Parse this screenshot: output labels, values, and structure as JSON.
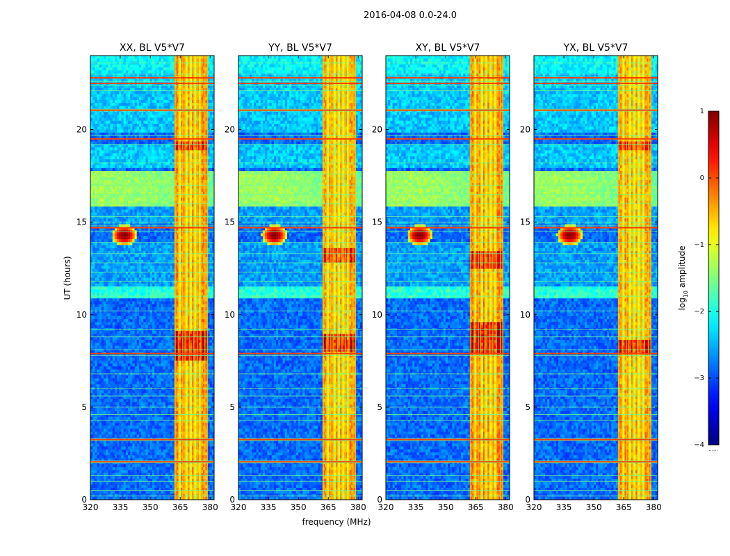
{
  "chart_data": {
    "type": "heatmap",
    "suptitle": "2016-04-08 0.0-24.0",
    "xlabel": "frequency (MHz)",
    "ylabel": "UT (hours)",
    "xlim": [
      320,
      382
    ],
    "ylim": [
      0,
      24
    ],
    "xticks": [
      320,
      335,
      350,
      365,
      380
    ],
    "yticks": [
      0,
      5,
      10,
      15,
      20
    ],
    "colormap": "jet",
    "colorbar": {
      "label_main": "log",
      "label_sub": "10",
      "label_tail": " amplitude",
      "range": [
        -4,
        1
      ],
      "ticks": [
        1,
        0,
        -1,
        -2,
        -3,
        -4
      ],
      "tick_labels": [
        "1",
        "0",
        "−1",
        "−2",
        "−3",
        "−4"
      ],
      "bottom_note": "......"
    },
    "panels": [
      {
        "title": "XX, BL V5*V7",
        "baseline": -2.85,
        "band_level": -1.0,
        "hot_region": [
          7.6,
          9.2
        ],
        "hot_top": [
          18.9,
          19.4
        ],
        "source_freq": 337,
        "source_ut": 14.3
      },
      {
        "title": "YY, BL V5*V7",
        "baseline": -2.85,
        "band_level": -1.1,
        "hot_region": [
          8.0,
          8.9
        ],
        "hot_top": [
          12.8,
          13.6
        ],
        "source_freq": 338,
        "source_ut": 14.3
      },
      {
        "title": "XY, BL V5*V7",
        "baseline": -2.85,
        "band_level": -1.0,
        "hot_region": [
          7.8,
          9.6
        ],
        "hot_top": [
          12.5,
          13.4
        ],
        "source_freq": 337,
        "source_ut": 14.3
      },
      {
        "title": "YX, BL V5*V7",
        "baseline": -2.85,
        "band_level": -1.1,
        "hot_region": [
          7.8,
          8.6
        ],
        "hot_top": [
          18.9,
          19.4
        ],
        "source_freq": 338,
        "source_ut": 14.3
      }
    ],
    "rfi_band_mhz": [
      362,
      379
    ],
    "bright_daytime_band_ut": [
      15.8,
      17.8
    ]
  }
}
